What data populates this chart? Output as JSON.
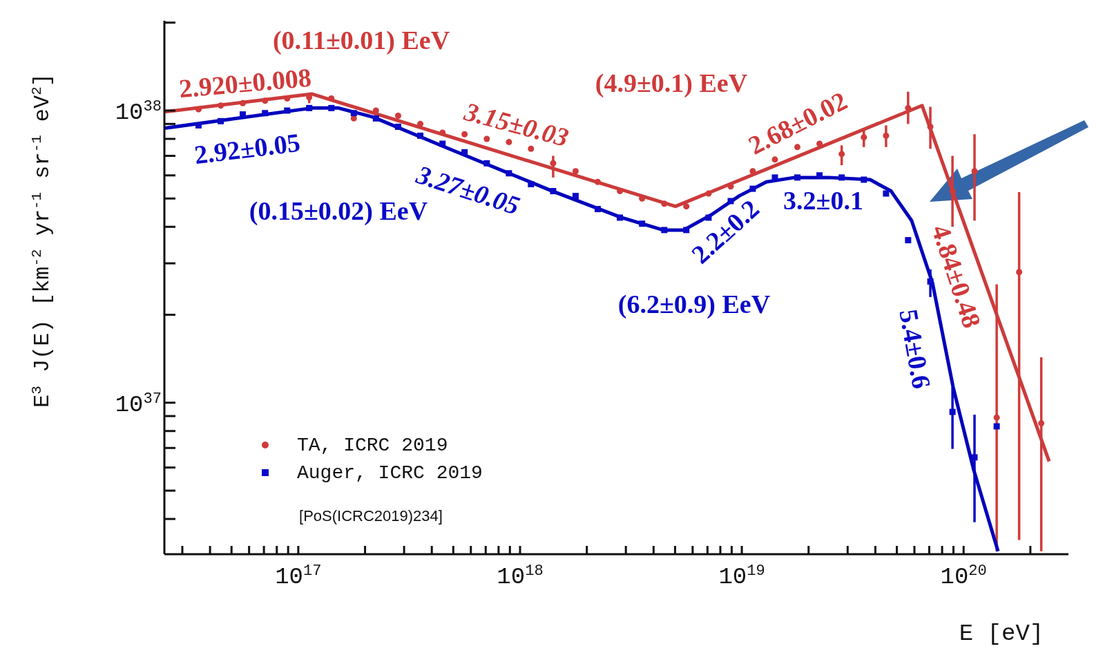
{
  "chart_data": {
    "type": "scatter",
    "xlabel": "E [eV]",
    "ylabel": "E$^{3}$ J(E) [km$^{-2}$ yr$^{-1}$ sr$^{-1}$ eV$^{2}$]",
    "log": "xy",
    "grid": false,
    "legend": "bottom left",
    "xlim": [
      2.49e+16,
      2.97e+20
    ],
    "ylim": [
      3.03e+36,
      2.03e+38
    ],
    "xticks": [
      {
        "value": 3e+16,
        "label": null
      },
      {
        "value": 4e+16,
        "label": null
      },
      {
        "value": 5e+16,
        "label": null
      },
      {
        "value": 6e+16,
        "label": null
      },
      {
        "value": 7e+16,
        "label": null
      },
      {
        "value": 8e+16,
        "label": null
      },
      {
        "value": 9e+16,
        "label": null
      },
      {
        "value": 1e+17,
        "label": "10$^{17}$"
      },
      {
        "value": 2e+17,
        "label": null
      },
      {
        "value": 3e+17,
        "label": null
      },
      {
        "value": 4e+17,
        "label": null
      },
      {
        "value": 5e+17,
        "label": null
      },
      {
        "value": 6e+17,
        "label": null
      },
      {
        "value": 7e+17,
        "label": null
      },
      {
        "value": 8e+17,
        "label": null
      },
      {
        "value": 9e+17,
        "label": null
      },
      {
        "value": 1e+18,
        "label": "10$^{18}$"
      },
      {
        "value": 2e+18,
        "label": null
      },
      {
        "value": 3e+18,
        "label": null
      },
      {
        "value": 4e+18,
        "label": null
      },
      {
        "value": 5e+18,
        "label": null
      },
      {
        "value": 6e+18,
        "label": null
      },
      {
        "value": 7e+18,
        "label": null
      },
      {
        "value": 8e+18,
        "label": null
      },
      {
        "value": 9e+18,
        "label": null
      },
      {
        "value": 1e+19,
        "label": "10$^{19}$"
      },
      {
        "value": 2e+19,
        "label": null
      },
      {
        "value": 3e+19,
        "label": null
      },
      {
        "value": 4e+19,
        "label": null
      },
      {
        "value": 5e+19,
        "label": null
      },
      {
        "value": 6e+19,
        "label": null
      },
      {
        "value": 7e+19,
        "label": null
      },
      {
        "value": 8e+19,
        "label": null
      },
      {
        "value": 9e+19,
        "label": null
      },
      {
        "value": 1e+20,
        "label": "10$^{20}$"
      },
      {
        "value": 2e+20,
        "label": null
      }
    ],
    "yticks": [
      {
        "value": 4e+36,
        "label": null
      },
      {
        "value": 5e+36,
        "label": null
      },
      {
        "value": 6e+36,
        "label": null
      },
      {
        "value": 7e+36,
        "label": null
      },
      {
        "value": 8e+36,
        "label": null
      },
      {
        "value": 9e+36,
        "label": null
      },
      {
        "value": 1e+37,
        "label": "10$^{37}$"
      },
      {
        "value": 2e+37,
        "label": null
      },
      {
        "value": 3e+37,
        "label": null
      },
      {
        "value": 4e+37,
        "label": null
      },
      {
        "value": 5e+37,
        "label": null
      },
      {
        "value": 6e+37,
        "label": null
      },
      {
        "value": 7e+37,
        "label": null
      },
      {
        "value": 8e+37,
        "label": null
      },
      {
        "value": 9e+37,
        "label": null
      },
      {
        "value": 1e+38,
        "label": "10$^{38}$"
      },
      {
        "value": 2e+38,
        "label": null
      }
    ],
    "series": [
      {
        "name": "TA, ICRC 2019",
        "marker": "circle",
        "color": "#d03a3a",
        "x": [
          3.55e+16,
          4.47e+16,
          5.62e+16,
          7.08e+16,
          8.91e+16,
          1.12e+17,
          1.41e+17,
          1.78e+17,
          2.24e+17,
          2.82e+17,
          3.55e+17,
          4.47e+17,
          5.62e+17,
          7.08e+17,
          8.91e+17,
          1.12e+18,
          1.41e+18,
          1.78e+18,
          2.24e+18,
          2.82e+18,
          3.55e+18,
          4.47e+18,
          5.62e+18,
          7.08e+18,
          8.91e+18,
          1.12e+19,
          1.41e+19,
          1.78e+19,
          2.24e+19,
          2.82e+19,
          3.55e+19,
          4.47e+19,
          5.62e+19,
          7.08e+19,
          8.91e+19,
          1.12e+20,
          1.41e+20,
          1.78e+20,
          2.24e+20
        ],
        "values": [
          1.01e+38,
          1.04e+38,
          1.06e+38,
          1.08e+38,
          1.1e+38,
          1.11e+38,
          1.1e+38,
          9.4e+37,
          1e+38,
          9.6e+37,
          9e+37,
          8.4e+37,
          8.3e+37,
          8e+37,
          7.8e+37,
          7.4e+37,
          6.6e+37,
          6.2e+37,
          5.7e+37,
          5.3e+37,
          5e+37,
          4.8e+37,
          4.7e+37,
          5.2e+37,
          5.5e+37,
          6.2e+37,
          6.8e+37,
          7.5e+37,
          7.7e+37,
          7.1e+37,
          8.1e+37,
          8.2e+37,
          1.02e+38,
          8.8e+37,
          5.3e+37,
          6.2e+37,
          8.9e+36,
          2.8e+37,
          8.5e+36
        ],
        "errors": [
          null,
          null,
          null,
          null,
          null,
          [
            1.06e+38,
            1.15e+38
          ],
          null,
          null,
          null,
          null,
          null,
          null,
          null,
          null,
          null,
          null,
          [
            5.9e+37,
            7e+37
          ],
          null,
          null,
          null,
          null,
          null,
          null,
          null,
          null,
          null,
          null,
          null,
          null,
          [
            6.5e+37,
            7.6e+37
          ],
          [
            7.5e+37,
            8.6e+37
          ],
          [
            7.5e+37,
            8.9e+37
          ],
          [
            9e+37,
            1.16e+38
          ],
          [
            7.4e+37,
            1.03e+38
          ],
          [
            4e+37,
            7e+37
          ],
          [
            4.2e+37,
            8.3e+37
          ],
          [
            3.1e+36,
            2.54e+37
          ],
          [
            3.39e+36,
            5.26e+37
          ],
          [
            3.1e+36,
            1.43e+37
          ]
        ]
      },
      {
        "name": "Auger, ICRC 2019",
        "marker": "square",
        "color": "#0a0ac8",
        "x": [
          3.55e+16,
          4.47e+16,
          5.62e+16,
          7.08e+16,
          8.91e+16,
          1.12e+17,
          1.41e+17,
          1.78e+17,
          2.24e+17,
          2.82e+17,
          3.55e+17,
          4.47e+17,
          5.62e+17,
          7.08e+17,
          8.91e+17,
          1.12e+18,
          1.41e+18,
          1.78e+18,
          2.24e+18,
          2.82e+18,
          3.55e+18,
          4.47e+18,
          5.62e+18,
          7.08e+18,
          8.91e+18,
          1.12e+19,
          1.41e+19,
          1.78e+19,
          2.24e+19,
          2.82e+19,
          3.55e+19,
          4.47e+19,
          5.62e+19,
          7.08e+19,
          8.91e+19,
          1.12e+20,
          1.41e+20
        ],
        "values": [
          8.9e+37,
          9.2e+37,
          9.7e+37,
          9.8e+37,
          1e+38,
          1.02e+38,
          1.02e+38,
          9.8e+37,
          9.4e+37,
          8.8e+37,
          8.2e+37,
          7.7e+37,
          7.2e+37,
          6.6e+37,
          6.1e+37,
          5.6e+37,
          5.3e+37,
          5.1e+37,
          4.6e+37,
          4.3e+37,
          4.1e+37,
          3.9e+37,
          3.9e+37,
          4.3e+37,
          4.9e+37,
          5.4e+37,
          5.9e+37,
          5.9e+37,
          6e+37,
          5.9e+37,
          5.8e+37,
          5.2e+37,
          3.6e+37,
          2.6e+37,
          9.3e+36,
          6.5e+36,
          8.3e+36
        ],
        "errors": [
          null,
          null,
          null,
          null,
          null,
          null,
          null,
          null,
          null,
          null,
          null,
          null,
          null,
          null,
          null,
          null,
          null,
          null,
          null,
          null,
          null,
          null,
          null,
          null,
          null,
          null,
          null,
          null,
          null,
          null,
          null,
          null,
          null,
          [
            2.3e+37,
            2.86e+37
          ],
          [
            6.95e+36,
            1.13e+37
          ],
          [
            3.9e+36,
            9.1e+36
          ],
          null
        ]
      },
      {
        "type": "line",
        "color": "#cc3b3b",
        "x": [
          2.49e+16,
          1.15e+17,
          5.02e+18,
          6.5e+19,
          2.43e+20
        ],
        "values": [
          9.9e+37,
          1.14e+38,
          4.7e+37,
          1.04e+38,
          6.3e+36
        ]
      },
      {
        "type": "line",
        "color": "#0000bb",
        "x": [
          2.49e+16,
          1.15e+17,
          1.52e+17,
          2.17e+17,
          4.78e+17,
          1.4e+18,
          2.87e+18,
          4.42e+18,
          5.47e+18,
          7.29e+18,
          9.72e+18,
          1.29e+19,
          1.73e+19,
          2.47e+19,
          3.79e+19,
          4.71e+19,
          5.83e+19,
          7.24e+19,
          8.97e+19,
          1.11e+20,
          1.43e+20
        ],
        "values": [
          8.7e+37,
          1.02e+38,
          1.02e+38,
          9.5e+37,
          7.4e+37,
          5.3e+37,
          4.3e+37,
          3.9e+37,
          3.9e+37,
          4.4e+37,
          5.1e+37,
          5.7e+37,
          5.9e+37,
          5.9e+37,
          5.8e+37,
          5.3e+37,
          4.2e+37,
          2.57e+37,
          1.13e+37,
          5.9e+36,
          3.1e+36
        ]
      }
    ],
    "annotations": [
      "2.920±0.008",
      "(0.11±0.01) EeV",
      "3.15±0.03",
      "(4.9±0.1) EeV",
      "2.68±0.02",
      "4.84±0.48",
      "2.92±0.05",
      "(0.15±0.02) EeV",
      "3.27±0.05",
      "2.2±0.2",
      "3.2±0.1",
      "(6.2±0.9) EeV",
      "5.4±0.6",
      "[PoS(ICRC2019)234]"
    ]
  }
}
